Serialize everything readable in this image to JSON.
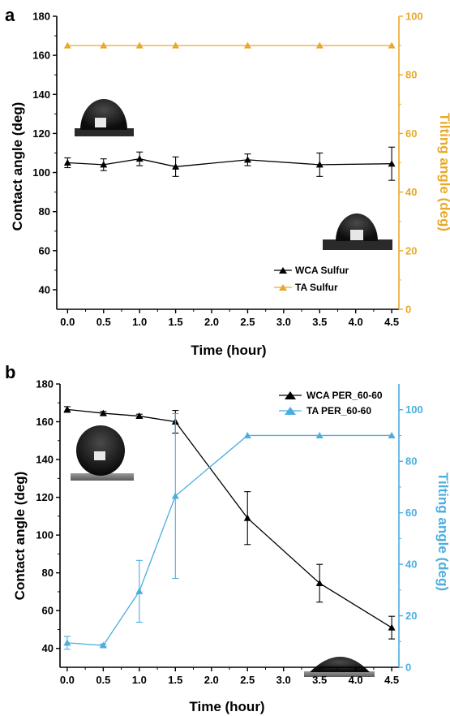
{
  "chart_data": [
    {
      "panel": "a",
      "type": "line",
      "xlabel": "Time (hour)",
      "ylabel": "Contact angle (deg)",
      "y2label": "Tilting angle (deg)",
      "xlim": [
        -0.15,
        4.6
      ],
      "ylim": [
        30,
        180
      ],
      "y2lim": [
        0,
        100
      ],
      "xticks": [
        0.0,
        0.5,
        1.0,
        1.5,
        2.0,
        2.5,
        3.0,
        3.5,
        4.0,
        4.5
      ],
      "yticks": [
        40,
        60,
        80,
        100,
        120,
        140,
        160,
        180
      ],
      "y2ticks": [
        0,
        20,
        40,
        60,
        80,
        100
      ],
      "legend_position": "bottom-right",
      "series": [
        {
          "name": "WCA Sulfur",
          "axis": "left",
          "color": "#000000",
          "marker": "triangle",
          "x": [
            0.0,
            0.5,
            1.0,
            1.5,
            2.5,
            3.5,
            4.5
          ],
          "y": [
            105,
            104,
            107,
            103,
            106.5,
            104,
            104.5
          ],
          "err": [
            2.5,
            3,
            3.5,
            5,
            3,
            6,
            8.5
          ]
        },
        {
          "name": "TA Sulfur",
          "axis": "right",
          "color": "#E8A92A",
          "marker": "triangle",
          "x": [
            0.0,
            0.5,
            1.0,
            1.5,
            2.5,
            3.5,
            4.5
          ],
          "y": [
            90,
            90,
            90,
            90,
            90,
            90,
            90
          ],
          "err": [
            0,
            0,
            0,
            0,
            0,
            0,
            0
          ]
        }
      ]
    },
    {
      "panel": "b",
      "type": "line",
      "xlabel": "Time (hour)",
      "ylabel": "Contact angle (deg)",
      "y2label": "Tilting angle (deg)",
      "xlim": [
        -0.1,
        4.6
      ],
      "ylim": [
        30,
        180
      ],
      "y2lim": [
        0,
        110
      ],
      "xticks": [
        0.0,
        0.5,
        1.0,
        1.5,
        2.0,
        2.5,
        3.0,
        3.5,
        4.0,
        4.5
      ],
      "yticks": [
        40,
        60,
        80,
        100,
        120,
        140,
        160,
        180
      ],
      "y2ticks": [
        0,
        20,
        40,
        60,
        80,
        100
      ],
      "legend_position": "top-right",
      "series": [
        {
          "name": "WCA PER_60-60",
          "axis": "left",
          "color": "#000000",
          "marker": "triangle",
          "x": [
            0.0,
            0.5,
            1.0,
            1.5,
            2.5,
            3.5,
            4.5
          ],
          "y": [
            166.5,
            164.5,
            163,
            160,
            109,
            74.5,
            51
          ],
          "err": [
            1.5,
            1,
            1,
            6,
            14,
            10,
            6
          ]
        },
        {
          "name": "TA PER_60-60",
          "axis": "right",
          "color": "#4BAEE0",
          "marker": "triangle",
          "x": [
            0.0,
            0.5,
            1.0,
            1.5,
            2.5,
            3.5,
            4.5
          ],
          "y": [
            9.5,
            8.5,
            29.5,
            66.5,
            90,
            90,
            90
          ],
          "err": [
            2.5,
            0.5,
            12,
            32,
            0,
            0,
            0
          ]
        }
      ]
    }
  ]
}
